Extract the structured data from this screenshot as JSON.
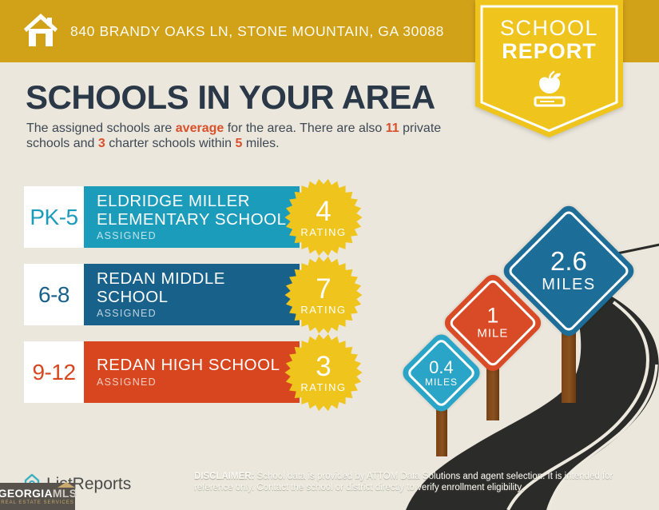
{
  "colors": {
    "background": "#EBE7DC",
    "header_gold": "#D1A118",
    "badge_yellow": "#EFC41C",
    "title_navy": "#2A3847",
    "body_text": "#3E4854",
    "accent_orange": "#D9502C",
    "rating_yellow": "#EFC41C",
    "road_dark": "#2B2B29",
    "post_brown": "#7B4414",
    "mls_box": "#57524C",
    "mls_gold": "#C2A76B",
    "listreports_teal": "#3BAFBF"
  },
  "header": {
    "address": "840 BRANDY OAKS LN, STONE MOUNTAIN, GA 30088",
    "badge_line1": "SCHOOL",
    "badge_line2": "REPORT"
  },
  "intro": {
    "title": "SCHOOLS IN YOUR AREA",
    "subtitle": {
      "s1": "The assigned schools are ",
      "h1": "average",
      "s2": " for the area. There are also ",
      "h2": "11",
      "s3": " private schools and ",
      "h3": "3",
      "s4": " charter schools within ",
      "h4": "5",
      "s5": " miles."
    }
  },
  "schools": [
    {
      "grades": "PK-5",
      "name": "ELDRIDGE MILLER ELEMENTARY SCHOOL",
      "status": "ASSIGNED",
      "rating": "4",
      "rating_label": "RATING",
      "color": "#1C9CBB"
    },
    {
      "grades": "6-8",
      "name": "REDAN MIDDLE SCHOOL",
      "status": "ASSIGNED",
      "rating": "7",
      "rating_label": "RATING",
      "color": "#17618A"
    },
    {
      "grades": "9-12",
      "name": "REDAN HIGH SCHOOL",
      "status": "ASSIGNED",
      "rating": "3",
      "rating_label": "RATING",
      "color": "#D7461F"
    }
  ],
  "signs": [
    {
      "value": "0.4",
      "unit": "MILES",
      "color": "#2AA5C8"
    },
    {
      "value": "1",
      "unit": "MILE",
      "color": "#D94A26"
    },
    {
      "value": "2.6",
      "unit": "MILES",
      "color": "#1D6D99"
    }
  ],
  "footer": {
    "brand": "ListReports",
    "mls": {
      "name_part1": "GEORGIA",
      "name_part2": "MLS",
      "tagline": "REAL ESTATE SERVICES"
    },
    "disclaimer_label": "DISCLAIMER:",
    "disclaimer_rest": " School data is provided by ATTOM Data Solutions and agent selection. It is intended for reference only. Contact the school or district directly to verify enrollment eligibility."
  }
}
